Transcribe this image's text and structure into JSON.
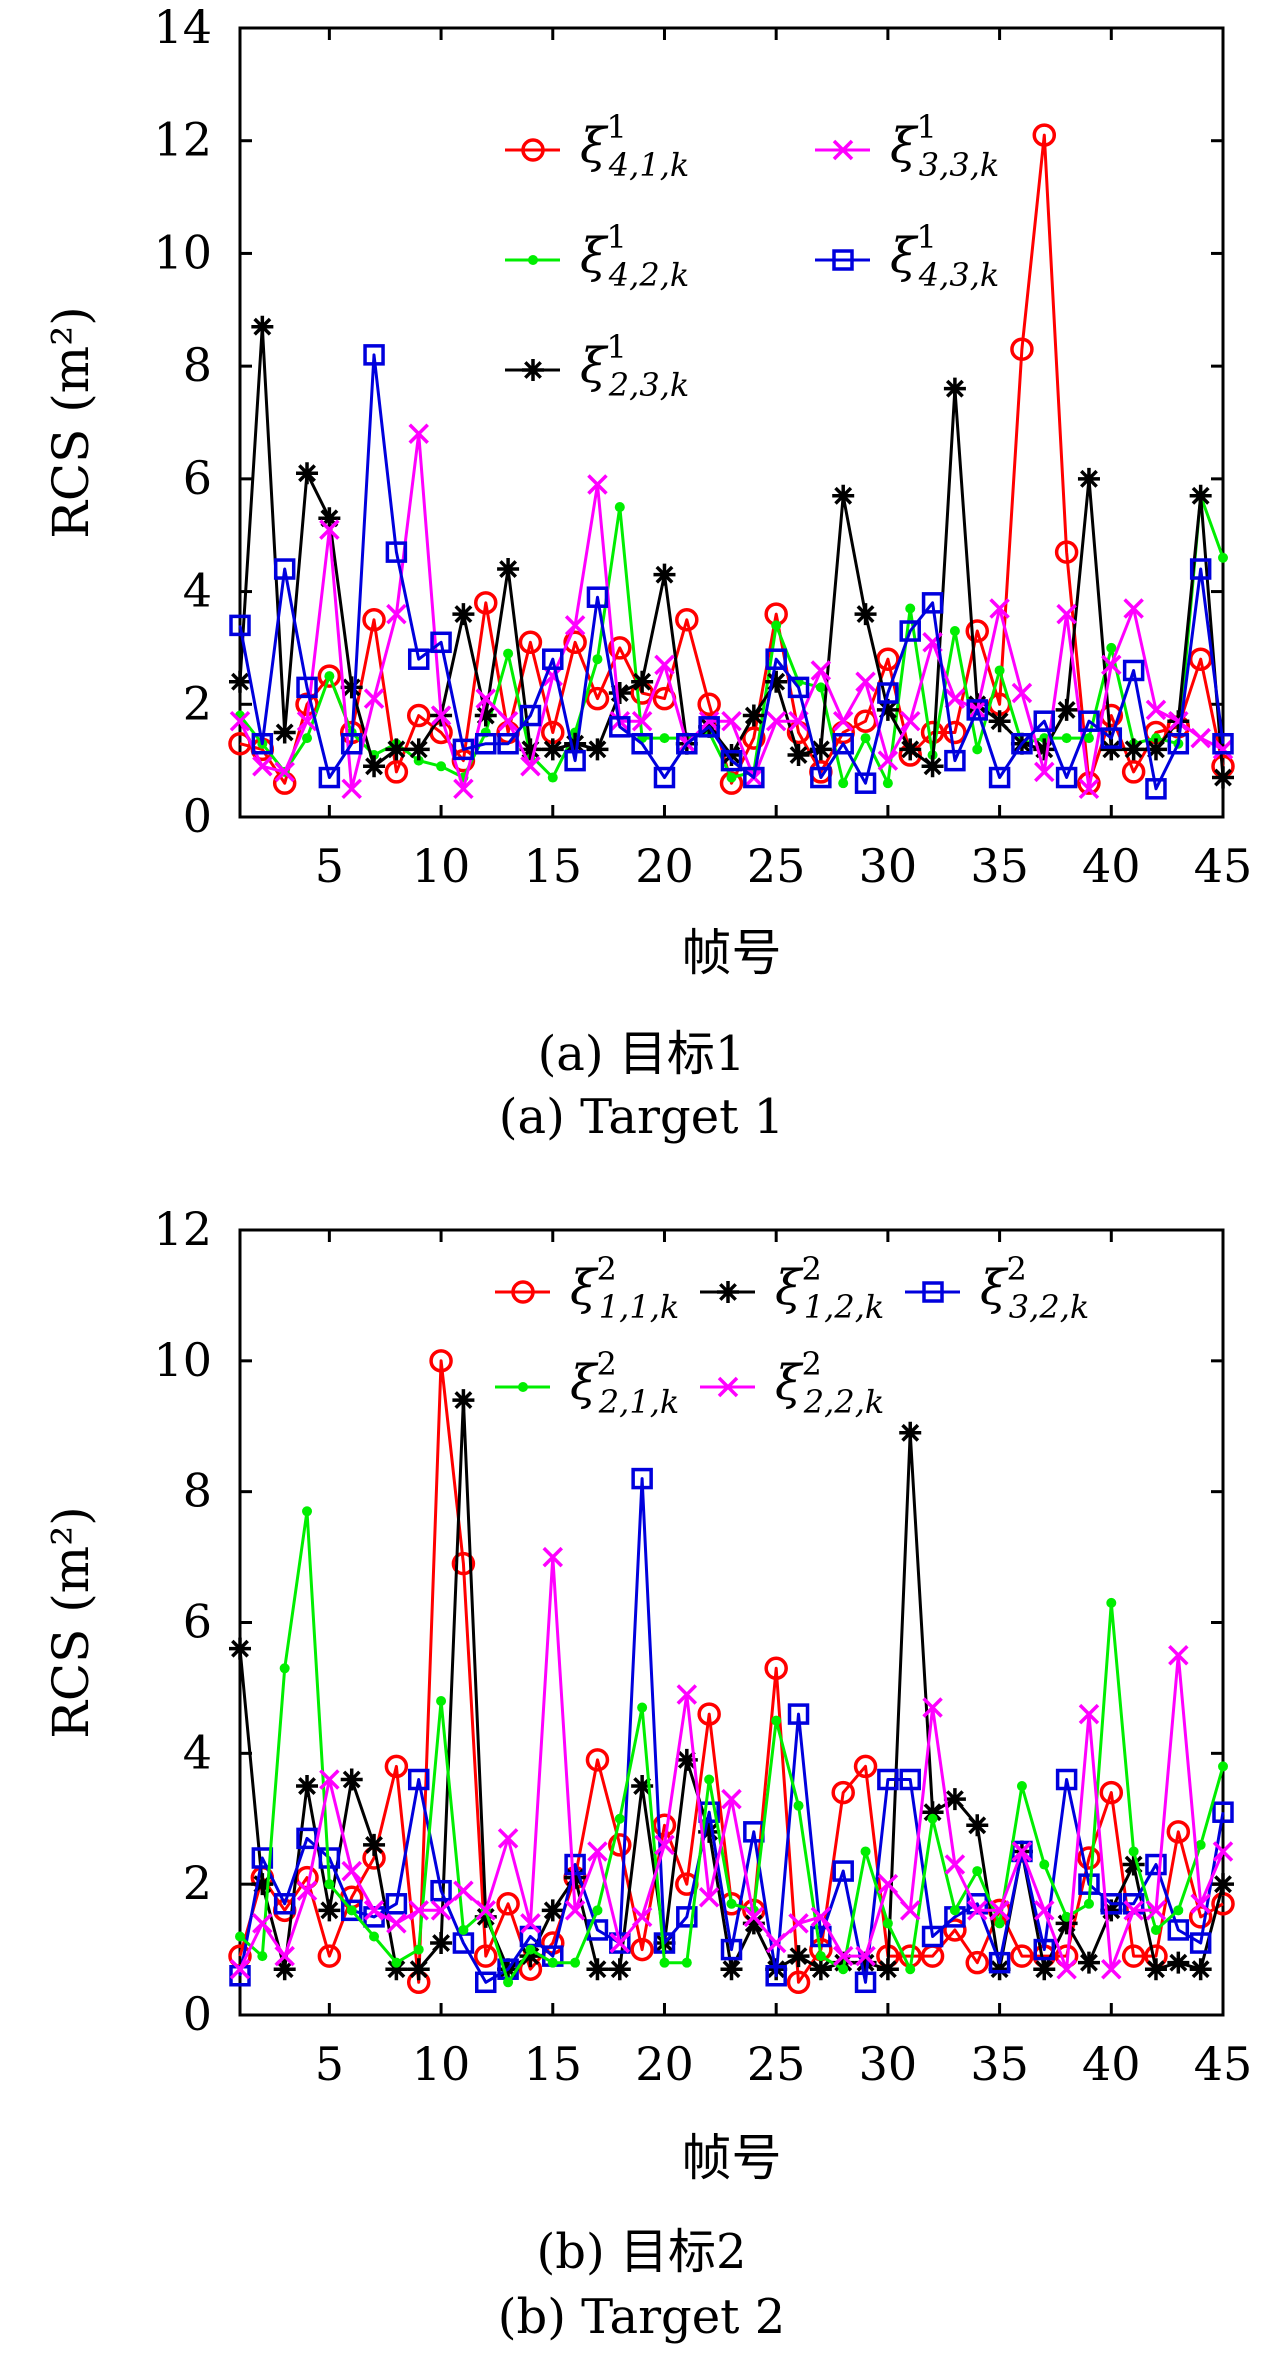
{
  "chart_data": [
    {
      "type": "line",
      "title": "",
      "xlabel": "帧号",
      "ylabel": "RCS (m²)",
      "xlim": [
        1,
        45
      ],
      "ylim": [
        0,
        14
      ],
      "xticks": [
        5,
        10,
        15,
        20,
        25,
        30,
        35,
        40,
        45
      ],
      "yticks": [
        0,
        2,
        4,
        6,
        8,
        10,
        12,
        14
      ],
      "grid": false,
      "legend_position": "top-center",
      "caption_cn": "(a) 目标1",
      "caption_en": "(a) Target 1",
      "x": [
        1,
        2,
        3,
        4,
        5,
        6,
        7,
        8,
        9,
        10,
        11,
        12,
        13,
        14,
        15,
        16,
        17,
        18,
        19,
        20,
        21,
        22,
        23,
        24,
        25,
        26,
        27,
        28,
        29,
        30,
        31,
        32,
        33,
        34,
        35,
        36,
        37,
        38,
        39,
        40,
        41,
        42,
        43,
        44,
        45
      ],
      "series": [
        {
          "name": "ξ¹₄,₁,ₖ",
          "base": "ξ",
          "sup": "1",
          "sub": "4,1,k",
          "color": "#ff0000",
          "marker": "circle",
          "values": [
            1.3,
            1.2,
            0.6,
            2.0,
            2.5,
            1.5,
            3.5,
            0.8,
            1.8,
            1.5,
            1.0,
            3.8,
            1.5,
            3.1,
            1.5,
            3.1,
            2.1,
            3.0,
            2.2,
            2.1,
            3.5,
            2.0,
            0.6,
            1.4,
            3.6,
            1.5,
            0.8,
            1.5,
            1.7,
            2.8,
            1.1,
            1.5,
            1.5,
            3.3,
            2.0,
            8.3,
            12.1,
            4.7,
            0.6,
            1.8,
            0.8,
            1.5,
            1.6,
            2.8,
            0.9
          ]
        },
        {
          "name": "ξ¹₄,₂,ₖ",
          "base": "ξ",
          "sup": "1",
          "sub": "4,2,k",
          "color": "#00ee00",
          "marker": "dot",
          "values": [
            1.8,
            1.3,
            0.8,
            1.4,
            2.5,
            1.5,
            1.1,
            1.3,
            1.0,
            0.9,
            0.7,
            1.5,
            2.9,
            1.1,
            0.7,
            1.5,
            2.8,
            5.5,
            1.4,
            1.4,
            1.4,
            1.5,
            0.7,
            0.8,
            3.4,
            2.4,
            2.3,
            0.6,
            1.4,
            0.6,
            3.7,
            1.1,
            3.3,
            1.2,
            2.6,
            1.3,
            1.4,
            1.4,
            1.4,
            3.0,
            1.3,
            1.4,
            1.3,
            5.7,
            4.6
          ]
        },
        {
          "name": "ξ¹₂,₃,ₖ",
          "base": "ξ",
          "sup": "1",
          "sub": "2,3,k",
          "color": "#000000",
          "marker": "star",
          "values": [
            2.4,
            8.7,
            1.5,
            6.1,
            5.3,
            2.3,
            0.9,
            1.2,
            1.2,
            1.8,
            3.6,
            1.8,
            4.4,
            1.2,
            1.2,
            1.3,
            1.2,
            2.2,
            2.4,
            4.3,
            1.3,
            1.6,
            1.1,
            1.8,
            2.4,
            1.1,
            1.2,
            5.7,
            3.6,
            1.9,
            1.2,
            0.9,
            7.6,
            2.0,
            1.7,
            1.3,
            1.2,
            1.9,
            6.0,
            1.2,
            1.2,
            1.2,
            1.7,
            5.7,
            0.7
          ]
        },
        {
          "name": "ξ¹₃,₃,ₖ",
          "base": "ξ",
          "sup": "1",
          "sub": "3,3,k",
          "color": "#ff00ff",
          "marker": "x",
          "values": [
            1.7,
            0.9,
            0.8,
            1.7,
            5.1,
            0.5,
            2.1,
            3.6,
            6.8,
            1.8,
            0.5,
            2.1,
            1.7,
            0.9,
            2.5,
            3.4,
            5.9,
            1.7,
            1.7,
            2.7,
            1.3,
            1.7,
            1.7,
            0.7,
            1.7,
            1.7,
            2.6,
            1.7,
            2.4,
            1.0,
            1.7,
            3.1,
            2.1,
            1.9,
            3.7,
            2.2,
            0.8,
            3.6,
            0.5,
            2.7,
            3.7,
            1.9,
            1.7,
            1.4,
            1.2
          ]
        },
        {
          "name": "ξ¹₄,₃,ₖ",
          "base": "ξ",
          "sup": "1",
          "sub": "4,3,k",
          "color": "#0000dd",
          "marker": "square",
          "values": [
            3.4,
            1.3,
            4.4,
            2.3,
            0.7,
            1.3,
            8.2,
            4.7,
            2.8,
            3.1,
            1.2,
            1.3,
            1.3,
            1.8,
            2.8,
            1.0,
            3.9,
            1.6,
            1.3,
            0.7,
            1.3,
            1.6,
            1.0,
            0.7,
            2.8,
            2.3,
            0.7,
            1.3,
            0.6,
            2.2,
            3.3,
            3.8,
            1.0,
            1.9,
            0.7,
            1.3,
            1.7,
            0.7,
            1.7,
            1.4,
            2.6,
            0.5,
            1.3,
            4.4,
            1.3
          ]
        }
      ],
      "legend_order": [
        0,
        3,
        1,
        4,
        2
      ],
      "legend_columns": 2
    },
    {
      "type": "line",
      "title": "",
      "xlabel": "帧号",
      "ylabel": "RCS (m²)",
      "xlim": [
        1,
        45
      ],
      "ylim": [
        0,
        12
      ],
      "xticks": [
        5,
        10,
        15,
        20,
        25,
        30,
        35,
        40,
        45
      ],
      "yticks": [
        0,
        2,
        4,
        6,
        8,
        10,
        12
      ],
      "grid": false,
      "legend_position": "top-center",
      "caption_cn": "(b) 目标2",
      "caption_en": "(b) Target 2",
      "x": [
        1,
        2,
        3,
        4,
        5,
        6,
        7,
        8,
        9,
        10,
        11,
        12,
        13,
        14,
        15,
        16,
        17,
        18,
        19,
        20,
        21,
        22,
        23,
        24,
        25,
        26,
        27,
        28,
        29,
        30,
        31,
        32,
        33,
        34,
        35,
        36,
        37,
        38,
        39,
        40,
        41,
        42,
        43,
        44,
        45
      ],
      "series": [
        {
          "name": "ξ²₁,₁,ₖ",
          "base": "ξ",
          "sup": "2",
          "sub": "1,1,k",
          "color": "#ff0000",
          "marker": "circle",
          "values": [
            0.9,
            2.1,
            1.6,
            2.1,
            0.9,
            1.8,
            2.4,
            3.8,
            0.5,
            10.0,
            6.9,
            0.9,
            1.7,
            0.7,
            1.1,
            2.1,
            3.9,
            2.6,
            1.0,
            2.9,
            2.0,
            4.6,
            1.7,
            1.6,
            5.3,
            0.5,
            1.0,
            3.4,
            3.8,
            0.9,
            0.9,
            0.9,
            1.3,
            0.8,
            1.6,
            0.9,
            0.9,
            0.9,
            2.4,
            3.4,
            0.9,
            0.9,
            2.8,
            1.5,
            1.7
          ]
        },
        {
          "name": "ξ²₁,₂,ₖ",
          "base": "ξ",
          "sup": "2",
          "sub": "1,2,k",
          "color": "#000000",
          "marker": "star",
          "values": [
            5.6,
            2.0,
            0.7,
            3.5,
            1.6,
            3.6,
            2.6,
            0.7,
            0.7,
            1.1,
            9.4,
            1.5,
            0.7,
            0.9,
            1.6,
            2.1,
            0.7,
            0.7,
            3.5,
            1.1,
            3.9,
            2.8,
            0.7,
            1.4,
            0.7,
            0.9,
            0.7,
            0.8,
            0.8,
            0.7,
            8.9,
            3.1,
            3.3,
            2.9,
            0.7,
            2.5,
            0.7,
            1.4,
            0.8,
            1.6,
            2.3,
            0.7,
            0.8,
            0.7,
            2.0
          ]
        },
        {
          "name": "ξ²₃,₂,ₖ",
          "base": "ξ",
          "sup": "2",
          "sub": "3,2,k",
          "color": "#0000dd",
          "marker": "square",
          "values": [
            0.6,
            2.4,
            1.7,
            2.7,
            2.4,
            1.6,
            1.5,
            1.7,
            3.6,
            1.9,
            1.1,
            0.5,
            0.7,
            1.2,
            0.9,
            2.3,
            1.3,
            1.1,
            8.2,
            1.1,
            1.5,
            3.1,
            1.0,
            2.8,
            0.6,
            4.6,
            1.2,
            2.2,
            0.5,
            3.6,
            3.6,
            1.2,
            1.5,
            1.7,
            0.8,
            2.5,
            1.0,
            3.6,
            2.0,
            1.7,
            1.7,
            2.3,
            1.3,
            1.1,
            3.1
          ]
        },
        {
          "name": "ξ²₂,₁,ₖ",
          "base": "ξ",
          "sup": "2",
          "sub": "2,1,k",
          "color": "#00ee00",
          "marker": "dot",
          "values": [
            1.2,
            0.9,
            5.3,
            7.7,
            2.0,
            1.6,
            1.2,
            0.8,
            1.0,
            4.8,
            1.3,
            1.6,
            0.5,
            1.0,
            0.8,
            0.8,
            1.6,
            3.0,
            4.7,
            0.8,
            0.8,
            3.6,
            1.7,
            1.6,
            4.5,
            3.2,
            0.9,
            0.7,
            2.5,
            1.4,
            0.7,
            3.0,
            1.6,
            2.2,
            1.4,
            3.5,
            2.3,
            1.5,
            1.7,
            6.3,
            2.5,
            1.3,
            1.6,
            2.6,
            3.8
          ]
        },
        {
          "name": "ξ²₂,₂,ₖ",
          "base": "ξ",
          "sup": "2",
          "sub": "2,2,k",
          "color": "#ff00ff",
          "marker": "x",
          "values": [
            0.7,
            1.4,
            0.9,
            1.9,
            3.6,
            2.2,
            1.6,
            1.4,
            1.6,
            1.6,
            1.9,
            1.6,
            2.7,
            1.4,
            7.0,
            1.6,
            2.5,
            1.1,
            1.5,
            2.6,
            4.9,
            1.8,
            3.3,
            1.5,
            1.1,
            1.4,
            1.5,
            0.9,
            0.9,
            2.0,
            1.6,
            4.7,
            2.3,
            1.6,
            1.6,
            2.5,
            1.6,
            0.7,
            4.6,
            0.7,
            1.6,
            1.6,
            5.5,
            1.7,
            2.5
          ]
        }
      ],
      "legend_order": [
        0,
        1,
        2,
        3,
        4
      ],
      "legend_columns": 3
    }
  ]
}
